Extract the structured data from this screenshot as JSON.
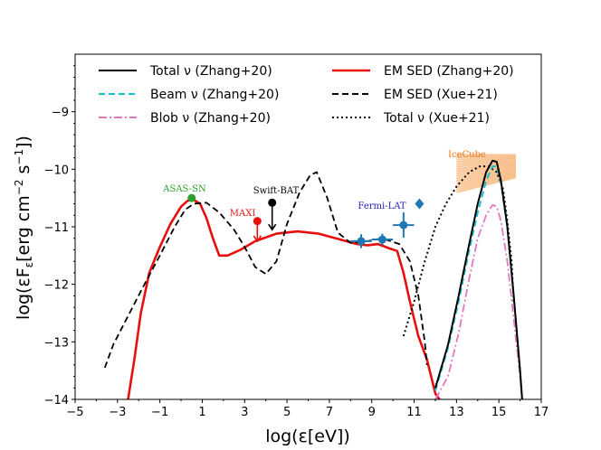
{
  "chart_data": {
    "type": "line",
    "xlabel": "log(ε[eV])",
    "ylabel_parts": [
      "log(εF",
      "ε",
      "[erg cm",
      "−2",
      " s",
      "−1",
      "])"
    ],
    "xlim": [
      -5,
      17
    ],
    "ylim": [
      -14,
      -8
    ],
    "xticks": [
      -5,
      -3,
      -1,
      1,
      3,
      5,
      7,
      9,
      11,
      13,
      15,
      17
    ],
    "xtick_labels": [
      "−5",
      "−3",
      "−1",
      "1",
      "3",
      "5",
      "7",
      "9",
      "11",
      "13",
      "15",
      "17"
    ],
    "yticks": [
      -14,
      -13,
      -12,
      -11,
      -10,
      -9
    ],
    "ytick_labels": [
      "−14",
      "−13",
      "−12",
      "−11",
      "−10",
      "−9"
    ],
    "legend": [
      {
        "id": "total-zhang",
        "label": "Total ν (Zhang+20)",
        "color": "#000000",
        "dash": "solid"
      },
      {
        "id": "beam-zhang",
        "label": "Beam ν (Zhang+20)",
        "color": "#17becf",
        "dash": "dashed"
      },
      {
        "id": "blob-zhang",
        "label": "Blob ν (Zhang+20)",
        "color": "#e377c2",
        "dash": "dashdot"
      },
      {
        "id": "em-zhang",
        "label": "EM SED (Zhang+20)",
        "color": "#e8100e",
        "dash": "solid"
      },
      {
        "id": "em-xue",
        "label": "EM SED (Xue+21)",
        "color": "#000000",
        "dash": "dashed"
      },
      {
        "id": "total-xue",
        "label": "Total ν (Xue+21)",
        "color": "#000000",
        "dash": "dotted"
      }
    ],
    "series": [
      {
        "id": "em-zhang",
        "name": "EM SED (Zhang+20)",
        "color": "#e8100e",
        "dash": "solid",
        "width": 2.6,
        "points": [
          [
            -2.5,
            -14
          ],
          [
            -2.2,
            -13.3
          ],
          [
            -1.9,
            -12.5
          ],
          [
            -1.5,
            -11.8
          ],
          [
            -1.0,
            -11.35
          ],
          [
            -0.5,
            -10.95
          ],
          [
            0,
            -10.65
          ],
          [
            0.3,
            -10.55
          ],
          [
            0.55,
            -10.52
          ],
          [
            0.9,
            -10.6
          ],
          [
            1.2,
            -10.85
          ],
          [
            1.5,
            -11.2
          ],
          [
            1.8,
            -11.5
          ],
          [
            2.2,
            -11.5
          ],
          [
            2.8,
            -11.4
          ],
          [
            3.5,
            -11.25
          ],
          [
            4.5,
            -11.12
          ],
          [
            5.5,
            -11.08
          ],
          [
            6.5,
            -11.12
          ],
          [
            7.5,
            -11.22
          ],
          [
            8.3,
            -11.3
          ],
          [
            8.8,
            -11.32
          ],
          [
            9.3,
            -11.3
          ],
          [
            9.8,
            -11.37
          ],
          [
            10.2,
            -11.42
          ],
          [
            10.5,
            -11.8
          ],
          [
            10.8,
            -12.3
          ],
          [
            11.2,
            -12.9
          ],
          [
            11.6,
            -13.3
          ],
          [
            12.0,
            -13.9
          ],
          [
            12.2,
            -14
          ]
        ]
      },
      {
        "id": "em-xue",
        "name": "EM SED (Xue+21)",
        "color": "#000000",
        "dash": "dashed",
        "width": 1.8,
        "points": [
          [
            -3.6,
            -13.45
          ],
          [
            -3.2,
            -13.05
          ],
          [
            -2.5,
            -12.55
          ],
          [
            -1.8,
            -12.05
          ],
          [
            -1,
            -11.5
          ],
          [
            -0.3,
            -11.0
          ],
          [
            0.2,
            -10.7
          ],
          [
            0.6,
            -10.6
          ],
          [
            1.2,
            -10.58
          ],
          [
            1.8,
            -10.75
          ],
          [
            2.5,
            -11.05
          ],
          [
            3.0,
            -11.35
          ],
          [
            3.5,
            -11.7
          ],
          [
            4.0,
            -11.82
          ],
          [
            4.5,
            -11.6
          ],
          [
            5.0,
            -10.95
          ],
          [
            5.6,
            -10.4
          ],
          [
            6.1,
            -10.1
          ],
          [
            6.4,
            -10.05
          ],
          [
            6.9,
            -10.5
          ],
          [
            7.4,
            -11.1
          ],
          [
            8.0,
            -11.28
          ],
          [
            8.8,
            -11.25
          ],
          [
            9.5,
            -11.2
          ],
          [
            10.3,
            -11.3
          ],
          [
            10.8,
            -11.6
          ],
          [
            11.2,
            -12.2
          ],
          [
            11.5,
            -13.0
          ],
          [
            11.6,
            -13.4
          ]
        ]
      },
      {
        "id": "total-xue",
        "name": "Total ν (Xue+21)",
        "color": "#000000",
        "dash": "dotted",
        "width": 2.0,
        "points": [
          [
            10.5,
            -12.9
          ],
          [
            11.0,
            -12.3
          ],
          [
            11.5,
            -11.6
          ],
          [
            12.0,
            -11.0
          ],
          [
            12.5,
            -10.6
          ],
          [
            13.0,
            -10.3
          ],
          [
            13.6,
            -10.05
          ],
          [
            14.1,
            -9.95
          ],
          [
            14.5,
            -9.95
          ],
          [
            14.9,
            -10.05
          ],
          [
            15.2,
            -10.35
          ],
          [
            15.4,
            -10.9
          ],
          [
            15.6,
            -11.6
          ],
          [
            15.7,
            -12.3
          ]
        ]
      },
      {
        "id": "beam-zhang",
        "name": "Beam ν (Zhang+20)",
        "color": "#17becf",
        "dash": "dashed",
        "width": 2.0,
        "points": [
          [
            12.0,
            -13.85
          ],
          [
            12.6,
            -13.1
          ],
          [
            13.1,
            -12.3
          ],
          [
            13.6,
            -11.4
          ],
          [
            14.0,
            -10.75
          ],
          [
            14.4,
            -10.2
          ],
          [
            14.7,
            -9.95
          ],
          [
            14.9,
            -9.95
          ],
          [
            15.1,
            -10.25
          ],
          [
            15.4,
            -11.0
          ],
          [
            15.7,
            -12.2
          ],
          [
            16.0,
            -13.5
          ],
          [
            16.1,
            -14
          ]
        ]
      },
      {
        "id": "blob-zhang",
        "name": "Blob ν (Zhang+20)",
        "color": "#e377c2",
        "dash": "dashdot",
        "width": 1.8,
        "points": [
          [
            12.0,
            -14
          ],
          [
            12.6,
            -13.6
          ],
          [
            13.1,
            -12.85
          ],
          [
            13.6,
            -11.9
          ],
          [
            14.0,
            -11.2
          ],
          [
            14.4,
            -10.8
          ],
          [
            14.7,
            -10.62
          ],
          [
            14.9,
            -10.65
          ],
          [
            15.1,
            -10.9
          ],
          [
            15.4,
            -11.6
          ],
          [
            15.7,
            -12.6
          ],
          [
            16.0,
            -13.6
          ],
          [
            16.1,
            -14
          ]
        ]
      },
      {
        "id": "total-zhang",
        "name": "Total ν (Zhang+20)",
        "color": "#000000",
        "dash": "solid",
        "width": 2.0,
        "points": [
          [
            12.0,
            -13.8
          ],
          [
            12.6,
            -13.05
          ],
          [
            13.1,
            -12.2
          ],
          [
            13.6,
            -11.3
          ],
          [
            14.0,
            -10.6
          ],
          [
            14.4,
            -10.05
          ],
          [
            14.7,
            -9.85
          ],
          [
            14.9,
            -9.87
          ],
          [
            15.1,
            -10.2
          ],
          [
            15.4,
            -11.0
          ],
          [
            15.7,
            -12.2
          ],
          [
            16.0,
            -13.5
          ],
          [
            16.1,
            -14
          ]
        ]
      }
    ],
    "points": [
      {
        "id": "asas-sn",
        "x": 0.5,
        "y": -10.5,
        "color": "#2ca02c",
        "label": "ASAS-SN",
        "label_color": "#2ca02c"
      },
      {
        "id": "fermi-1",
        "x": 8.5,
        "y": -11.25,
        "xerr": 0.5,
        "yerr": 0.12,
        "color": "#1f77b4"
      },
      {
        "id": "fermi-2",
        "x": 9.5,
        "y": -11.22,
        "xerr": 0.5,
        "yerr": 0.1,
        "color": "#1f77b4"
      },
      {
        "id": "fermi-3",
        "x": 10.5,
        "y": -10.97,
        "xerr": 0.5,
        "yerr": 0.22,
        "color": "#1f77b4"
      },
      {
        "id": "fermi-ul",
        "x": 11.25,
        "y": -10.6,
        "color": "#1f77b4",
        "marker": "diamond",
        "label": "Fermi-LAT",
        "label_color": "#2222bb"
      }
    ],
    "upper_limits": [
      {
        "id": "maxi",
        "x": 3.6,
        "y": -10.9,
        "y_to": -11.25,
        "color": "#e8100e",
        "label": "MAXI",
        "label_color": "#e8100e"
      },
      {
        "id": "swift-bat",
        "x": 4.3,
        "y": -10.58,
        "y_to": -11.05,
        "color": "#000000",
        "label": "Swift-BAT",
        "label_color": "#000000"
      }
    ],
    "icecube": {
      "label": "IceCube",
      "label_color": "#e8751a",
      "color": "#f59d4c",
      "x_range": [
        13.0,
        15.8
      ],
      "y_lower": -10.4,
      "y_upper": -9.75
    }
  }
}
